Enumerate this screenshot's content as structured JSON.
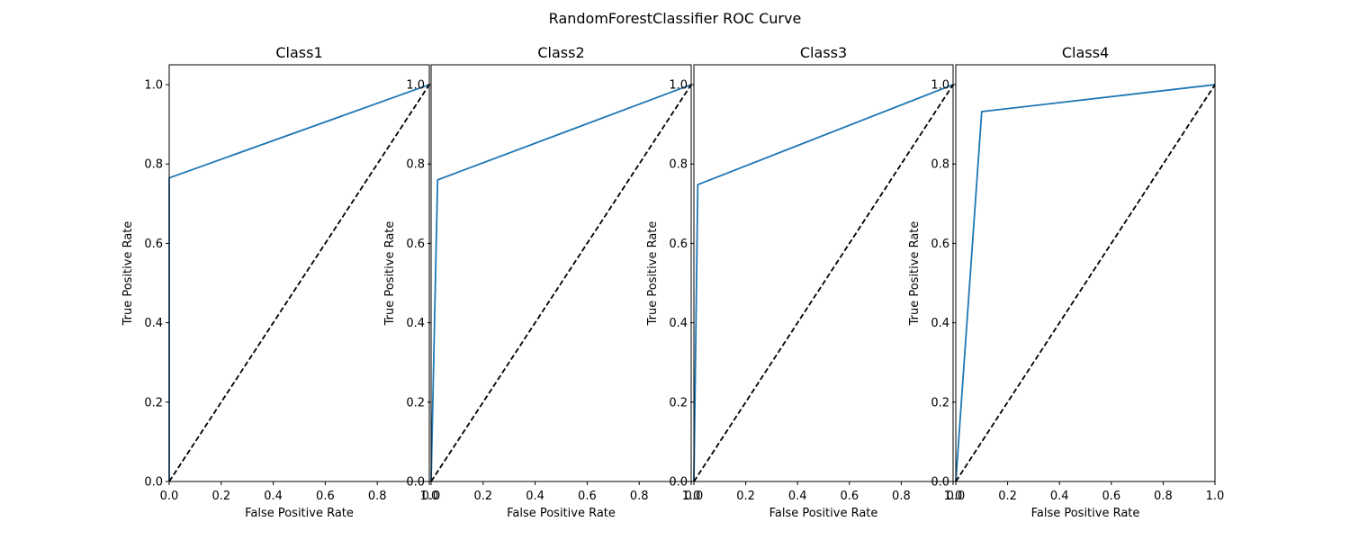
{
  "figure": {
    "title": "RandomForestClassifier ROC Curve"
  },
  "colors": {
    "roc": "#1f77b4",
    "chance": "#000000",
    "axes": "#000000",
    "background": "#ffffff"
  },
  "chart_data": [
    {
      "type": "line",
      "title": "Class1",
      "xlabel": "False Positive Rate",
      "ylabel": "True Positive Rate",
      "xlim": [
        0.0,
        1.0
      ],
      "ylim": [
        0.0,
        1.05
      ],
      "xticks": [
        "0.0",
        "0.2",
        "0.4",
        "0.6",
        "0.8",
        "1.0"
      ],
      "yticks": [
        "0.0",
        "0.2",
        "0.4",
        "0.6",
        "0.8",
        "1.0"
      ],
      "grid": false,
      "series": [
        {
          "x": [
            0.0,
            0.0,
            1.0
          ],
          "y": [
            0.0,
            0.765,
            1.0
          ],
          "style": "solid"
        },
        {
          "x": [
            0.0,
            1.0
          ],
          "y": [
            0.0,
            1.0
          ],
          "style": "dashed"
        }
      ]
    },
    {
      "type": "line",
      "title": "Class2",
      "xlabel": "False Positive Rate",
      "ylabel": "True Positive Rate",
      "xlim": [
        0.0,
        1.0
      ],
      "ylim": [
        0.0,
        1.05
      ],
      "xticks": [
        "0.0",
        "0.2",
        "0.4",
        "0.6",
        "0.8",
        "1.0"
      ],
      "yticks": [
        "0.0",
        "0.2",
        "0.4",
        "0.6",
        "0.8",
        "1.0"
      ],
      "grid": false,
      "series": [
        {
          "x": [
            0.0,
            0.025,
            1.0
          ],
          "y": [
            0.0,
            0.76,
            1.0
          ],
          "style": "solid"
        },
        {
          "x": [
            0.0,
            1.0
          ],
          "y": [
            0.0,
            1.0
          ],
          "style": "dashed"
        }
      ]
    },
    {
      "type": "line",
      "title": "Class3",
      "xlabel": "False Positive Rate",
      "ylabel": "True Positive Rate",
      "xlim": [
        0.0,
        1.0
      ],
      "ylim": [
        0.0,
        1.05
      ],
      "xticks": [
        "0.0",
        "0.2",
        "0.4",
        "0.6",
        "0.8",
        "1.0"
      ],
      "yticks": [
        "0.0",
        "0.2",
        "0.4",
        "0.6",
        "0.8",
        "1.0"
      ],
      "grid": false,
      "series": [
        {
          "x": [
            0.0,
            0.015,
            1.0
          ],
          "y": [
            0.0,
            0.748,
            1.0
          ],
          "style": "solid"
        },
        {
          "x": [
            0.0,
            1.0
          ],
          "y": [
            0.0,
            1.0
          ],
          "style": "dashed"
        }
      ]
    },
    {
      "type": "line",
      "title": "Class4",
      "xlabel": "False Positive Rate",
      "ylabel": "True Positive Rate",
      "xlim": [
        0.0,
        1.0
      ],
      "ylim": [
        0.0,
        1.05
      ],
      "xticks": [
        "0.0",
        "0.2",
        "0.4",
        "0.6",
        "0.8",
        "1.0"
      ],
      "yticks": [
        "0.0",
        "0.2",
        "0.4",
        "0.6",
        "0.8",
        "1.0"
      ],
      "grid": false,
      "series": [
        {
          "x": [
            0.0,
            0.1,
            1.0
          ],
          "y": [
            0.0,
            0.932,
            1.0
          ],
          "style": "solid"
        },
        {
          "x": [
            0.0,
            1.0
          ],
          "y": [
            0.0,
            1.0
          ],
          "style": "dashed"
        }
      ]
    }
  ]
}
